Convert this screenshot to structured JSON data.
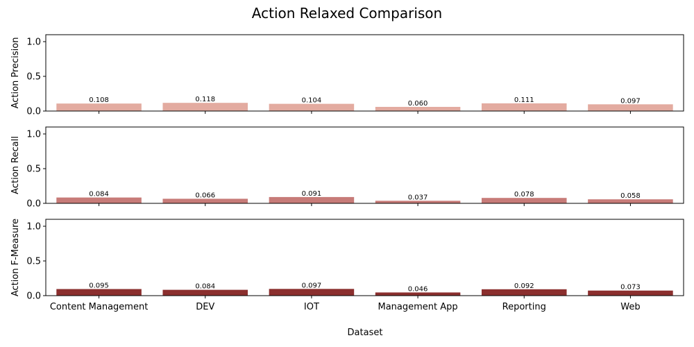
{
  "chart_data": {
    "type": "bar",
    "title": "Action Relaxed Comparison",
    "xlabel": "Dataset",
    "categories": [
      "Content Management",
      "DEV",
      "IOT",
      "Management App",
      "Reporting",
      "Web"
    ],
    "ylim": [
      0,
      1.1
    ],
    "yticks": [
      "0.0",
      "0.5",
      "1.0"
    ],
    "grid": false,
    "panels": [
      {
        "ylabel": "Action Precision",
        "color": "#e3aba0",
        "values": [
          0.108,
          0.118,
          0.104,
          0.06,
          0.111,
          0.097
        ],
        "value_labels": [
          "0.108",
          "0.118",
          "0.104",
          "0.060",
          "0.111",
          "0.097"
        ]
      },
      {
        "ylabel": "Action Recall",
        "color": "#c77b78",
        "values": [
          0.084,
          0.066,
          0.091,
          0.037,
          0.078,
          0.058
        ],
        "value_labels": [
          "0.084",
          "0.066",
          "0.091",
          "0.037",
          "0.078",
          "0.058"
        ]
      },
      {
        "ylabel": "Action F-Measure",
        "color": "#8b2f2e",
        "values": [
          0.095,
          0.084,
          0.097,
          0.046,
          0.092,
          0.073
        ],
        "value_labels": [
          "0.095",
          "0.084",
          "0.097",
          "0.046",
          "0.092",
          "0.073"
        ]
      }
    ]
  }
}
